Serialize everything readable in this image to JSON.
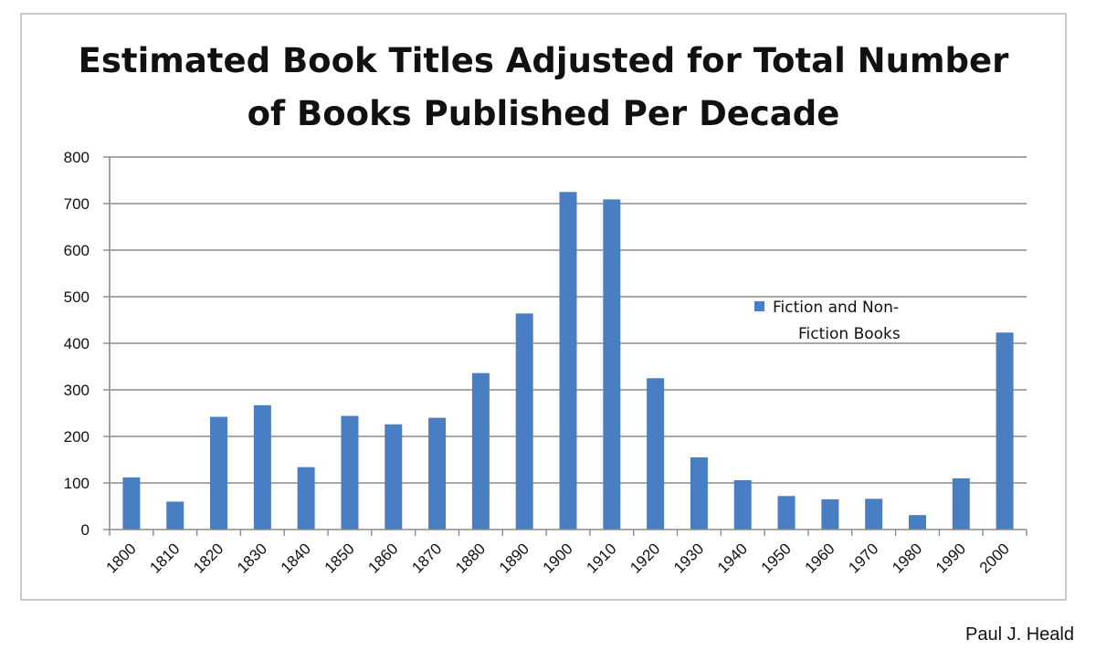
{
  "chart_data": {
    "type": "bar",
    "title_lines": [
      "Estimated Book Titles Adjusted for Total Number",
      "of Books Published Per Decade"
    ],
    "categories": [
      "1800",
      "1810",
      "1820",
      "1830",
      "1840",
      "1850",
      "1860",
      "1870",
      "1880",
      "1890",
      "1900",
      "1910",
      "1920",
      "1930",
      "1940",
      "1950",
      "1960",
      "1970",
      "1980",
      "1990",
      "2000"
    ],
    "series": [
      {
        "name": "Fiction and Non-Fiction Books",
        "legend_lines": [
          "Fiction and Non-",
          "Fiction Books"
        ],
        "color": "#4a7ec2",
        "values": [
          112,
          60,
          242,
          267,
          134,
          244,
          226,
          240,
          336,
          464,
          725,
          709,
          325,
          155,
          106,
          72,
          65,
          66,
          31,
          110,
          423
        ]
      }
    ],
    "ylim": [
      0,
      800
    ],
    "yticks": [
      0,
      100,
      200,
      300,
      400,
      500,
      600,
      700,
      800
    ],
    "grid": true,
    "legend_position": "right"
  },
  "credit": "Paul J. Heald"
}
